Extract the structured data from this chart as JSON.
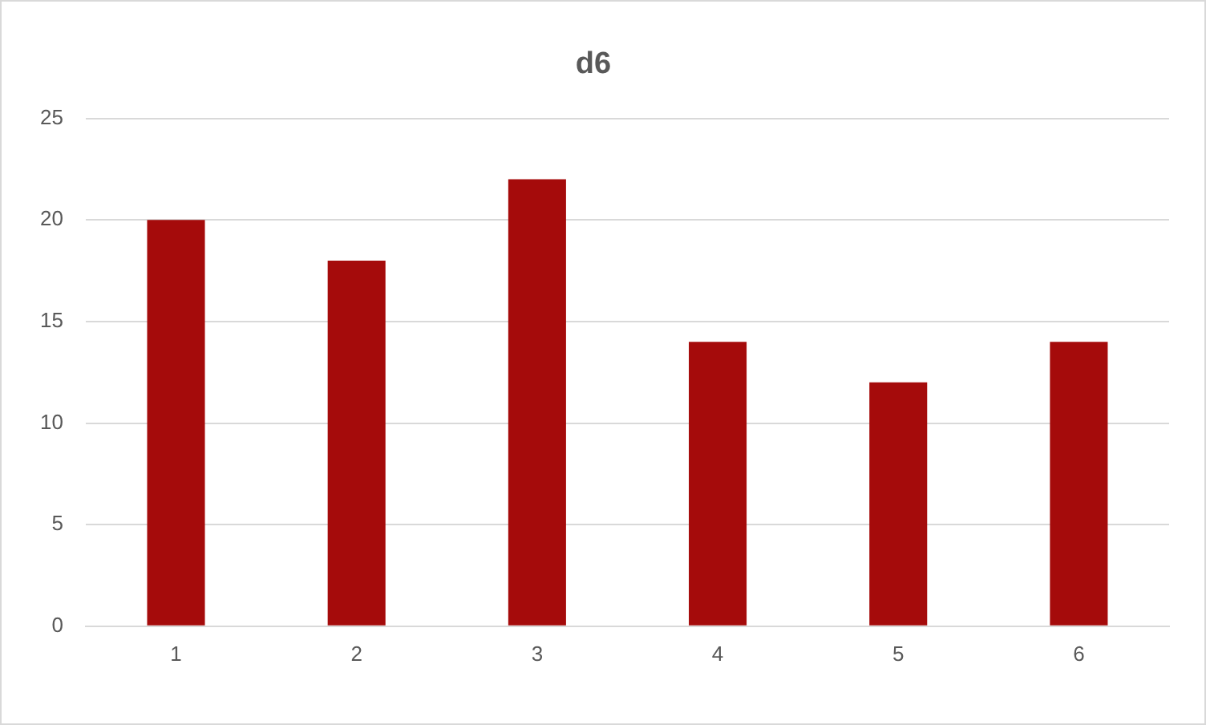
{
  "chart_data": {
    "type": "bar",
    "title": "d6",
    "categories": [
      "1",
      "2",
      "3",
      "4",
      "5",
      "6"
    ],
    "values": [
      20,
      18,
      22,
      14,
      12,
      14
    ],
    "color": "#a50b0b",
    "ylim": [
      0,
      25
    ],
    "yticks": [
      0,
      5,
      10,
      15,
      20,
      25
    ],
    "grid": "y",
    "legend": false
  }
}
